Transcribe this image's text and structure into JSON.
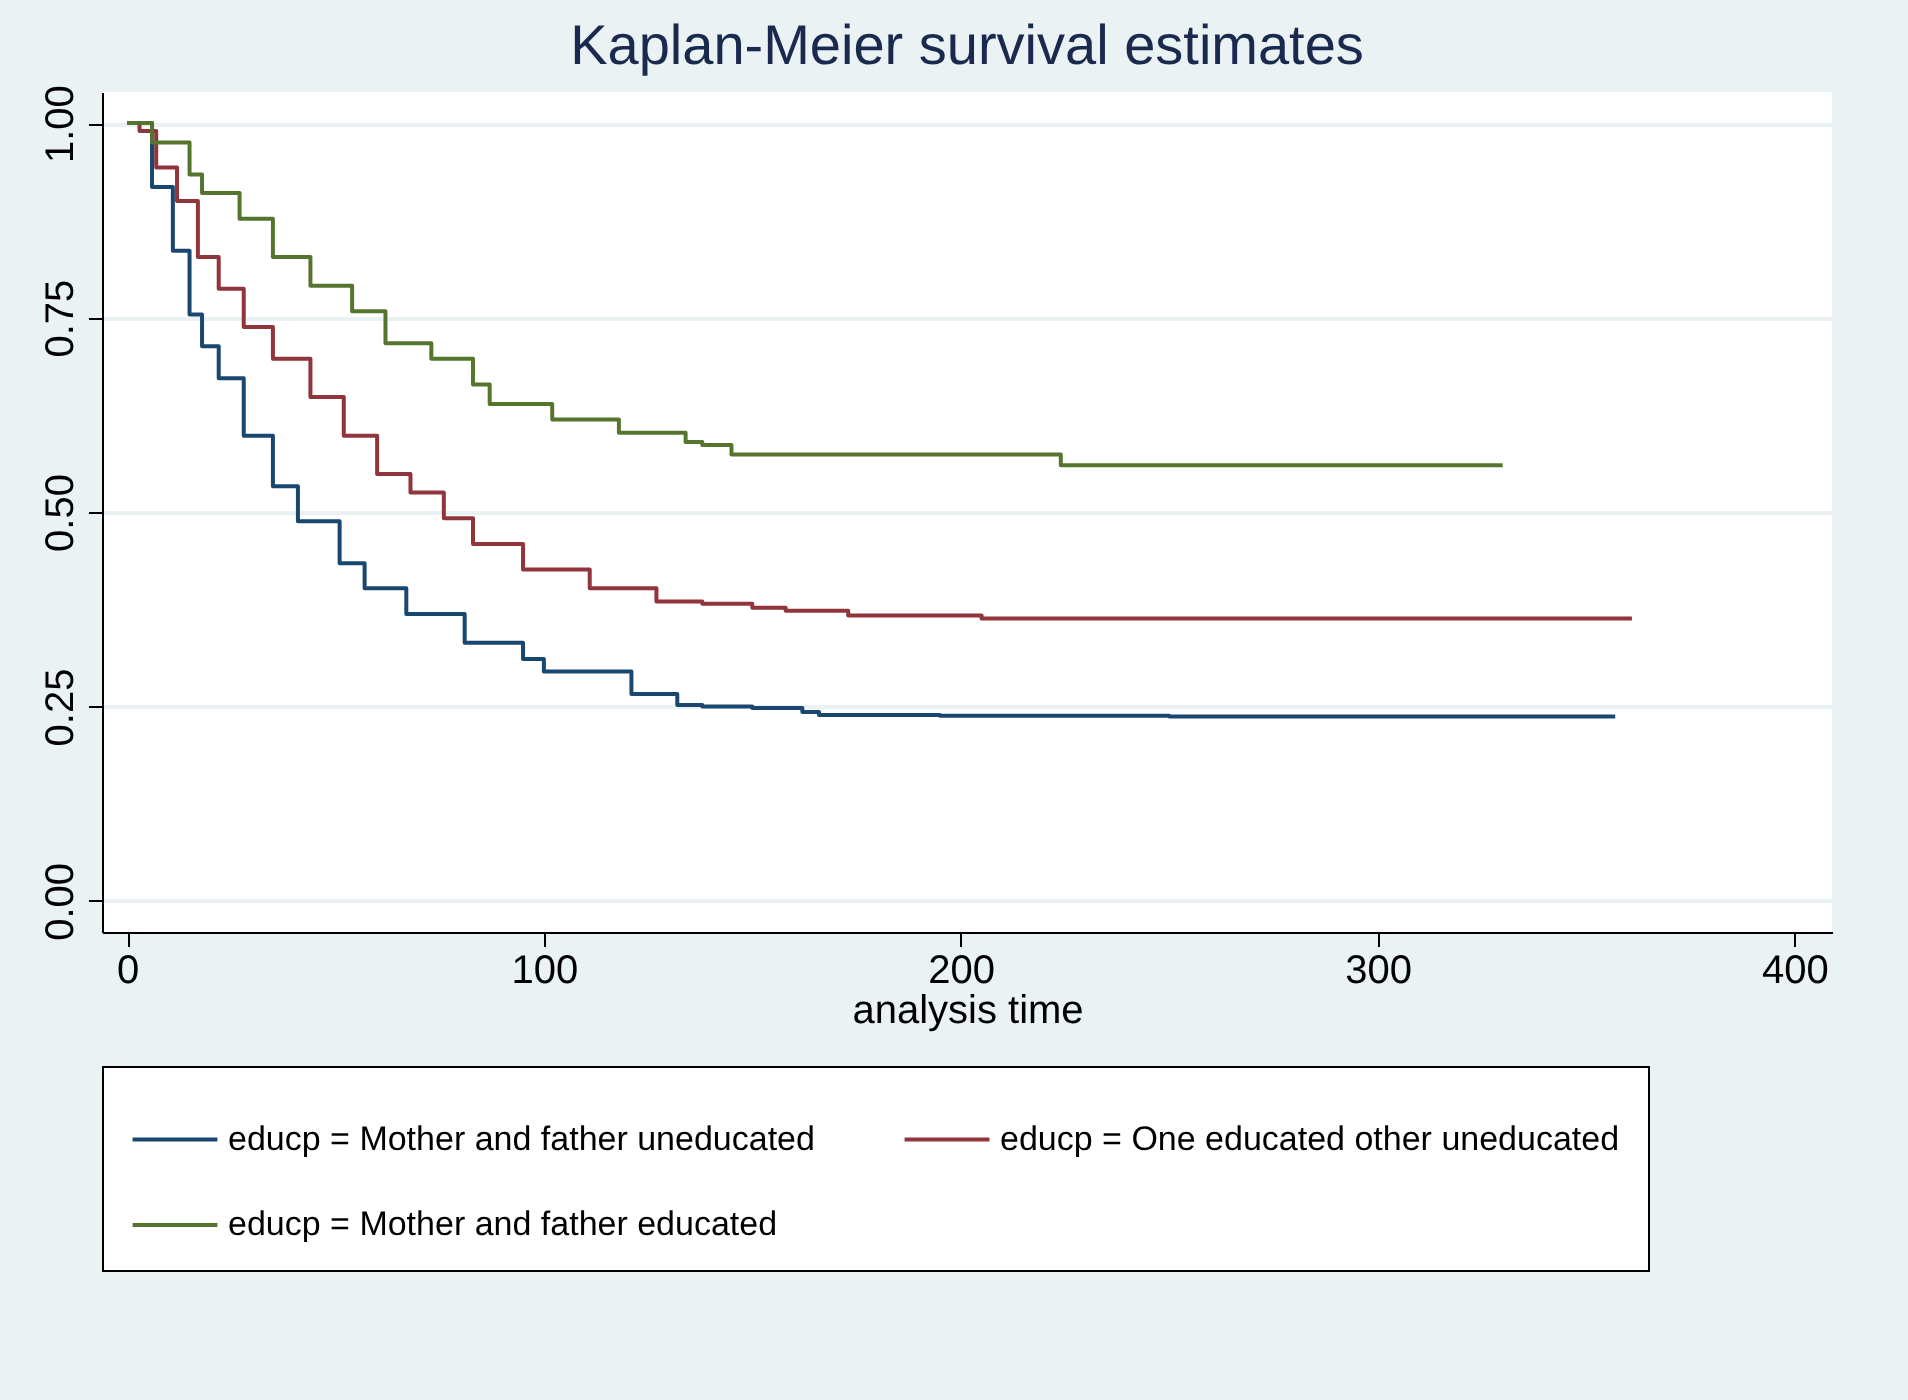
{
  "chart_data": {
    "type": "step",
    "title": "Kaplan-Meier survival estimates",
    "xlabel": "analysis time",
    "xlim": [
      -6,
      409
    ],
    "ylim": [
      -0.04,
      1.04
    ],
    "xticks": [
      0,
      100,
      200,
      300,
      400
    ],
    "yticks": [
      {
        "value": 0,
        "label": "0.00"
      },
      {
        "value": 0.25,
        "label": "0.25"
      },
      {
        "value": 0.5,
        "label": "0.50"
      },
      {
        "value": 0.75,
        "label": "0.75"
      },
      {
        "value": 1,
        "label": "1.00"
      }
    ],
    "grid": "y",
    "legend": "bottom",
    "series": [
      {
        "name": "educp = Mother and father uneducated",
        "color": "#1a476f",
        "x": [
          0,
          1,
          6,
          11,
          15,
          18,
          22,
          28,
          35,
          41,
          51,
          57,
          67,
          81,
          95,
          100,
          121,
          132,
          138,
          150,
          162,
          166,
          195,
          250,
          357
        ],
        "values": [
          1,
          1,
          0.918,
          0.836,
          0.754,
          0.713,
          0.672,
          0.598,
          0.533,
          0.488,
          0.434,
          0.402,
          0.369,
          0.332,
          0.311,
          0.295,
          0.266,
          0.252,
          0.25,
          0.248,
          0.243,
          0.239,
          0.238,
          0.237,
          0.237
        ]
      },
      {
        "name": "educp = One educated other uneducated",
        "color": "#90353b",
        "x": [
          0,
          3,
          7,
          12,
          17,
          22,
          28,
          35,
          44,
          52,
          60,
          68,
          76,
          83,
          95,
          111,
          127,
          138,
          150,
          158,
          173,
          205,
          361
        ],
        "values": [
          1,
          0.99,
          0.943,
          0.9,
          0.828,
          0.787,
          0.738,
          0.697,
          0.648,
          0.598,
          0.549,
          0.525,
          0.492,
          0.459,
          0.426,
          0.402,
          0.385,
          0.382,
          0.377,
          0.373,
          0.367,
          0.363,
          0.363
        ]
      },
      {
        "name": "educp = Mother and father educated",
        "color": "#55752f",
        "x": [
          0,
          1,
          6,
          15,
          18,
          27,
          35,
          44,
          54,
          62,
          73,
          83,
          87,
          102,
          118,
          134,
          138,
          145,
          224,
          330
        ],
        "values": [
          1,
          1,
          0.975,
          0.934,
          0.91,
          0.877,
          0.828,
          0.791,
          0.758,
          0.717,
          0.697,
          0.664,
          0.639,
          0.619,
          0.602,
          0.59,
          0.586,
          0.574,
          0.56,
          0.56
        ]
      }
    ]
  }
}
